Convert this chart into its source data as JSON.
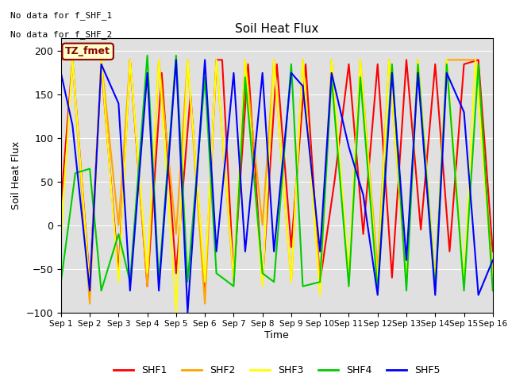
{
  "title": "Soil Heat Flux",
  "ylabel": "Soil Heat Flux",
  "xlabel": "Time",
  "note1": "No data for f_SHF_1",
  "note2": "No data for f_SHF_2",
  "legend_label": "TZ_fmet",
  "ylim": [
    -100,
    215
  ],
  "xlim": [
    0,
    15
  ],
  "xtick_labels": [
    "Sep 1",
    "Sep 2",
    "Sep 3",
    "Sep 4",
    "Sep 5",
    "Sep 6",
    "Sep 7",
    "Sep 8",
    "Sep 9",
    "Sep 10",
    "Sep 11",
    "Sep 12",
    "Sep 13",
    "Sep 14",
    "Sep 15",
    "Sep 16"
  ],
  "series_colors": {
    "SHF1": "#ff0000",
    "SHF2": "#ffa500",
    "SHF3": "#ffff00",
    "SHF4": "#00cc00",
    "SHF5": "#0000ff"
  },
  "background_color": "#e0e0e0",
  "fig_facecolor": "#ffffff",
  "figsize": [
    6.4,
    4.8
  ],
  "dpi": 100,
  "SHF1_x": [
    0,
    0.4,
    1,
    1.4,
    2,
    2.4,
    3,
    3.5,
    4,
    4.5,
    5,
    5.4,
    5.6,
    6,
    6.5,
    7,
    7.5,
    8,
    8.5,
    9,
    9.5,
    10,
    10.5,
    11,
    11.5,
    12,
    12.5,
    13,
    13.5,
    14,
    14.5,
    15
  ],
  "SHF1_y": [
    25,
    190,
    -65,
    185,
    -55,
    190,
    -70,
    175,
    -55,
    150,
    -75,
    190,
    190,
    -60,
    185,
    -65,
    185,
    -25,
    185,
    -65,
    50,
    185,
    -10,
    185,
    -60,
    190,
    -5,
    185,
    -30,
    185,
    190,
    -30
  ],
  "SHF2_x": [
    0,
    0.4,
    1,
    1.4,
    2,
    2.4,
    3,
    3.4,
    4,
    4.4,
    5,
    5.4,
    6,
    6.4,
    7,
    7.4,
    8,
    8.4,
    9,
    9.4,
    10,
    10.4,
    11,
    11.4,
    12,
    12.4,
    13,
    13.4,
    14,
    14.4,
    15
  ],
  "SHF2_y": [
    190,
    190,
    -90,
    190,
    0,
    190,
    -70,
    190,
    -10,
    190,
    -90,
    190,
    -65,
    190,
    0,
    190,
    -65,
    190,
    -65,
    190,
    -65,
    190,
    -50,
    190,
    -65,
    190,
    -65,
    190,
    190,
    190,
    -55
  ],
  "SHF3_x": [
    0,
    0.4,
    1,
    1.4,
    2,
    2.4,
    3,
    3.4,
    4,
    4.4,
    5,
    5.4,
    6,
    6.4,
    7,
    7.4,
    8,
    8.4,
    9,
    9.4,
    10,
    10.4,
    11,
    11.4,
    12,
    12.4,
    13,
    13.4,
    14,
    14.4,
    15
  ],
  "SHF3_y": [
    -15,
    190,
    -70,
    190,
    -65,
    190,
    -55,
    190,
    -100,
    190,
    -65,
    190,
    -60,
    190,
    -70,
    190,
    -65,
    190,
    -80,
    190,
    -55,
    190,
    -65,
    190,
    -65,
    190,
    -65,
    190,
    -65,
    190,
    -65
  ],
  "SHF4_x": [
    0,
    0.5,
    1,
    1.4,
    2,
    2.4,
    3,
    3.4,
    4,
    4.4,
    5,
    5.4,
    6,
    6.4,
    7,
    7.4,
    8,
    8.4,
    9,
    9.4,
    10,
    10.4,
    11,
    11.5,
    12,
    12.4,
    13,
    13.4,
    14,
    14.5,
    15
  ],
  "SHF4_y": [
    -65,
    60,
    65,
    -75,
    -10,
    -65,
    195,
    -65,
    195,
    -65,
    170,
    -55,
    -70,
    170,
    -55,
    -65,
    185,
    -70,
    -65,
    170,
    -70,
    170,
    -75,
    185,
    -75,
    185,
    -75,
    185,
    -75,
    185,
    -75
  ],
  "SHF5_x": [
    0,
    0.4,
    1,
    1.4,
    2,
    2.4,
    3,
    3.4,
    4,
    4.4,
    5,
    5.4,
    6,
    6.4,
    7,
    7.4,
    8,
    8.4,
    9,
    9.4,
    10,
    10.5,
    11,
    11.5,
    12,
    12.4,
    13,
    13.4,
    14,
    14.5,
    15
  ],
  "SHF5_y": [
    175,
    115,
    -75,
    185,
    140,
    -75,
    175,
    -75,
    190,
    -100,
    190,
    -30,
    175,
    -30,
    175,
    -30,
    175,
    160,
    -30,
    175,
    90,
    35,
    -80,
    175,
    -40,
    175,
    -80,
    175,
    130,
    -80,
    -40
  ]
}
